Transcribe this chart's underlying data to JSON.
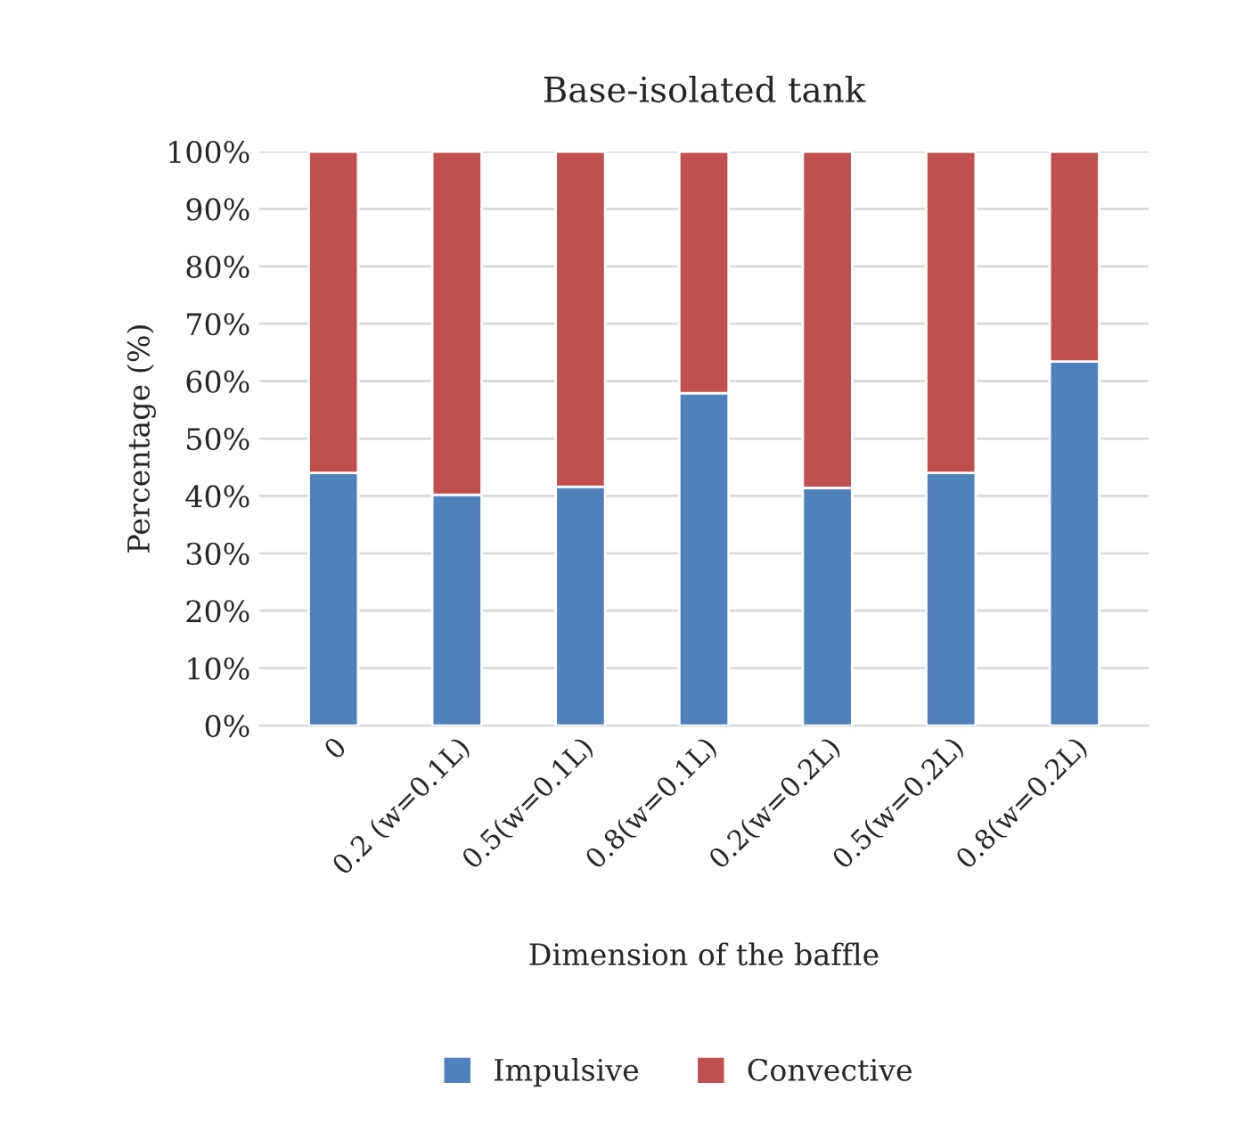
{
  "chart_data": {
    "type": "bar",
    "title": "Base-isolated tank",
    "xlabel": "Dimension of the baffle",
    "ylabel": "Percentage (%)",
    "categories": [
      "0",
      "0.2 (w=0.1L)",
      "0.5(w=0.1L)",
      "0.8(w=0.1L)",
      "0.2(w=0.2L)",
      "0.5(w=0.2L)",
      "0.8(w=0.2L)"
    ],
    "stacked": true,
    "series": [
      {
        "name": "Impulsive",
        "color": "#4f81bd",
        "values": [
          44,
          40.2,
          41.6,
          57.9,
          41.4,
          44,
          63.4
        ]
      },
      {
        "name": "Convective",
        "color": "#c0504d",
        "values": [
          56,
          59.8,
          58.4,
          42.1,
          58.6,
          56,
          36.6
        ]
      }
    ],
    "ylim": [
      0,
      100
    ],
    "yticks": [
      {
        "value": 0,
        "label": "0%"
      },
      {
        "value": 10,
        "label": "10%"
      },
      {
        "value": 20,
        "label": "20%"
      },
      {
        "value": 30,
        "label": "30%"
      },
      {
        "value": 40,
        "label": "40%"
      },
      {
        "value": 50,
        "label": "50%"
      },
      {
        "value": 60,
        "label": "60%"
      },
      {
        "value": 70,
        "label": "70%"
      },
      {
        "value": 80,
        "label": "80%"
      },
      {
        "value": 90,
        "label": "90%"
      },
      {
        "value": 100,
        "label": "100%"
      }
    ],
    "grid": "y",
    "legend": "bottom"
  }
}
